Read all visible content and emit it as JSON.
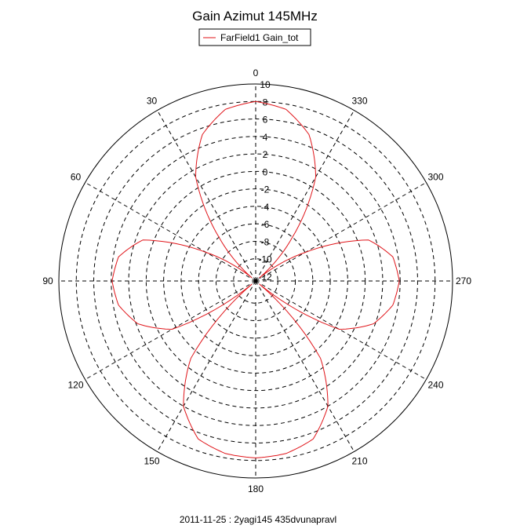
{
  "chart_data": {
    "type": "polar",
    "title": "Gain Azimut 145MHz",
    "legend": {
      "position": "top-center",
      "entries": [
        {
          "label": "FarField1 Gain_tot",
          "color": "#e0151a"
        }
      ]
    },
    "footer": "2011-11-25 : 2yagi145 435dvunapravl",
    "angle_direction": "counterclockwise",
    "angle_zero": "top",
    "angle_ticks": [
      0,
      30,
      60,
      90,
      120,
      150,
      180,
      210,
      240,
      270,
      300,
      330
    ],
    "angle_tick_labels": [
      "0",
      "30",
      "60",
      "90",
      "120",
      "150",
      "180",
      "210",
      "240",
      "270",
      "300",
      "330"
    ],
    "radial_range": [
      -12,
      10
    ],
    "radial_ticks": [
      10,
      8,
      6,
      4,
      2,
      0,
      -2,
      -4,
      -6,
      -8,
      -10,
      -12
    ],
    "radial_tick_labels": [
      "10",
      "8",
      "6",
      "4",
      "2",
      "0",
      "-2",
      "-4",
      "-6",
      "-8",
      "-10",
      "-12"
    ],
    "grid": true,
    "series": [
      {
        "name": "FarField1 Gain_tot",
        "color": "#e0151a",
        "theta": [
          0,
          10,
          20,
          30,
          40,
          50,
          60,
          70,
          80,
          90,
          100,
          110,
          120,
          130,
          140,
          150,
          160,
          170,
          180,
          190,
          200,
          210,
          220,
          230,
          240,
          250,
          260,
          270,
          280,
          290,
          300,
          310,
          320,
          330,
          340,
          350,
          360
        ],
        "r": [
          8,
          7.4,
          5.3,
          1.2,
          -6,
          -12,
          -6,
          1.2,
          3.4,
          3.9,
          3.4,
          1.8,
          -1.5,
          -12,
          -1,
          4,
          6.7,
          7.5,
          7.7,
          7.5,
          6.7,
          4,
          -1,
          -12,
          -1.5,
          1.8,
          3.4,
          3.9,
          3.4,
          1.2,
          -6,
          -12,
          -6,
          1.2,
          5.3,
          7.4,
          8
        ]
      }
    ]
  }
}
